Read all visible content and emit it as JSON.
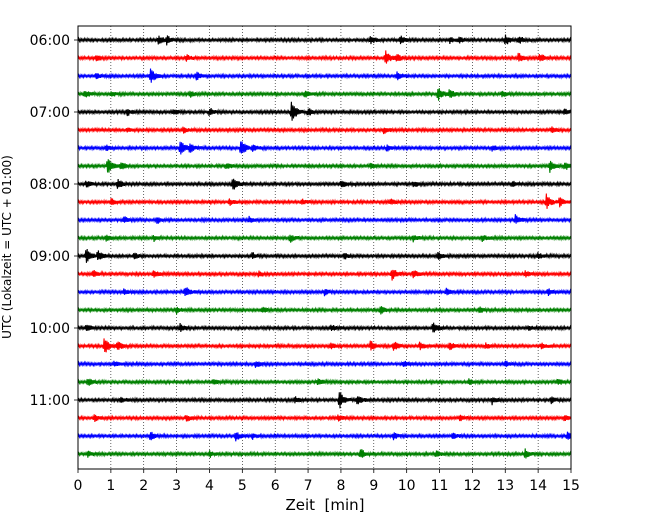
{
  "chart_data": {
    "type": "line",
    "title": "",
    "xlabel": "Zeit  [min]",
    "ylabel": "UTC (Lokalzeit = UTC + 01:00)",
    "xlim": [
      0,
      15
    ],
    "xticks": [
      0,
      1,
      2,
      3,
      4,
      5,
      6,
      7,
      8,
      9,
      10,
      11,
      12,
      13,
      14,
      15
    ],
    "xtick_labels": [
      "0",
      "1",
      "2",
      "3",
      "4",
      "5",
      "6",
      "7",
      "8",
      "9",
      "10",
      "11",
      "12",
      "13",
      "14",
      "15"
    ],
    "ytick_labels": [
      "06:00",
      "07:00",
      "08:00",
      "09:00",
      "10:00",
      "11:00"
    ],
    "ytick_trace_index": [
      0,
      4,
      8,
      12,
      16,
      20
    ],
    "grid": "vertical dotted at each minute",
    "row_interval_minutes": 15,
    "color_cycle": [
      "#000000",
      "#ff0000",
      "#0000ff",
      "#008000"
    ],
    "traces": [
      {
        "start": "06:00",
        "events": [
          {
            "x": 2.45,
            "amp": 4
          },
          {
            "x": 2.7,
            "amp": 4
          },
          {
            "x": 8.9,
            "amp": 4
          },
          {
            "x": 9.8,
            "amp": 4
          },
          {
            "x": 11.3,
            "amp": 3
          },
          {
            "x": 11.6,
            "amp": 3
          },
          {
            "x": 13.0,
            "amp": 5
          },
          {
            "x": 13.4,
            "amp": 4
          }
        ]
      },
      {
        "start": "06:15",
        "events": [
          {
            "x": 0.55,
            "amp": 3
          },
          {
            "x": 3.3,
            "amp": 3
          },
          {
            "x": 9.35,
            "amp": 7
          },
          {
            "x": 9.7,
            "amp": 4
          },
          {
            "x": 13.4,
            "amp": 5
          },
          {
            "x": 14.05,
            "amp": 4
          }
        ]
      },
      {
        "start": "06:30",
        "events": [
          {
            "x": 0.55,
            "amp": 3
          },
          {
            "x": 2.2,
            "amp": 8
          },
          {
            "x": 3.6,
            "amp": 4
          },
          {
            "x": 9.7,
            "amp": 4
          }
        ]
      },
      {
        "start": "06:45",
        "events": [
          {
            "x": 0.2,
            "amp": 4
          },
          {
            "x": 1.0,
            "amp": 3
          },
          {
            "x": 3.4,
            "amp": 3
          },
          {
            "x": 6.9,
            "amp": 3
          },
          {
            "x": 10.95,
            "amp": 7
          },
          {
            "x": 11.3,
            "amp": 4
          },
          {
            "x": 12.9,
            "amp": 3
          }
        ]
      },
      {
        "start": "07:00",
        "events": [
          {
            "x": 1.5,
            "amp": 3
          },
          {
            "x": 2.9,
            "amp": 3
          },
          {
            "x": 4.0,
            "amp": 4
          },
          {
            "x": 6.5,
            "amp": 11
          },
          {
            "x": 7.0,
            "amp": 4
          },
          {
            "x": 14.8,
            "amp": 3
          }
        ]
      },
      {
        "start": "07:15",
        "events": [
          {
            "x": 1.5,
            "amp": 2
          },
          {
            "x": 3.2,
            "amp": 3
          },
          {
            "x": 9.3,
            "amp": 3
          },
          {
            "x": 14.4,
            "amp": 3
          }
        ]
      },
      {
        "start": "07:30",
        "events": [
          {
            "x": 0.85,
            "amp": 3
          },
          {
            "x": 3.1,
            "amp": 9
          },
          {
            "x": 3.4,
            "amp": 4
          },
          {
            "x": 4.95,
            "amp": 9
          },
          {
            "x": 5.3,
            "amp": 3
          },
          {
            "x": 9.4,
            "amp": 3
          },
          {
            "x": 12.6,
            "amp": 3
          }
        ]
      },
      {
        "start": "07:45",
        "events": [
          {
            "x": 0.9,
            "amp": 9
          },
          {
            "x": 1.3,
            "amp": 4
          },
          {
            "x": 4.5,
            "amp": 3
          },
          {
            "x": 8.9,
            "amp": 3
          },
          {
            "x": 14.35,
            "amp": 6
          },
          {
            "x": 14.8,
            "amp": 4
          }
        ]
      },
      {
        "start": "08:00",
        "events": [
          {
            "x": 0.25,
            "amp": 3
          },
          {
            "x": 1.2,
            "amp": 5
          },
          {
            "x": 4.7,
            "amp": 8
          },
          {
            "x": 8.0,
            "amp": 4
          },
          {
            "x": 10.2,
            "amp": 3
          },
          {
            "x": 13.2,
            "amp": 3
          }
        ]
      },
      {
        "start": "08:15",
        "events": [
          {
            "x": 1.0,
            "amp": 3
          },
          {
            "x": 4.6,
            "amp": 3
          },
          {
            "x": 6.8,
            "amp": 3
          },
          {
            "x": 9.5,
            "amp": 3
          },
          {
            "x": 14.25,
            "amp": 7
          },
          {
            "x": 14.65,
            "amp": 4
          }
        ]
      },
      {
        "start": "08:30",
        "events": [
          {
            "x": 1.4,
            "amp": 3
          },
          {
            "x": 2.4,
            "amp": 3
          },
          {
            "x": 5.2,
            "amp": 3
          },
          {
            "x": 13.3,
            "amp": 5
          }
        ]
      },
      {
        "start": "08:45",
        "events": [
          {
            "x": 0.85,
            "amp": 3
          },
          {
            "x": 2.3,
            "amp": 3
          },
          {
            "x": 6.45,
            "amp": 4
          },
          {
            "x": 10.2,
            "amp": 3
          },
          {
            "x": 12.3,
            "amp": 3
          }
        ]
      },
      {
        "start": "09:00",
        "events": [
          {
            "x": 0.25,
            "amp": 7
          },
          {
            "x": 0.6,
            "amp": 5
          },
          {
            "x": 1.7,
            "amp": 3
          },
          {
            "x": 5.3,
            "amp": 3
          },
          {
            "x": 8.1,
            "amp": 3
          },
          {
            "x": 10.95,
            "amp": 4
          },
          {
            "x": 14.0,
            "amp": 3
          }
        ]
      },
      {
        "start": "09:15",
        "events": [
          {
            "x": 0.45,
            "amp": 4
          },
          {
            "x": 2.3,
            "amp": 3
          },
          {
            "x": 5.5,
            "amp": 3
          },
          {
            "x": 9.55,
            "amp": 6
          },
          {
            "x": 10.2,
            "amp": 4
          },
          {
            "x": 13.6,
            "amp": 3
          }
        ]
      },
      {
        "start": "09:30",
        "events": [
          {
            "x": 1.4,
            "amp": 3
          },
          {
            "x": 3.25,
            "amp": 6
          },
          {
            "x": 7.5,
            "amp": 3
          },
          {
            "x": 11.2,
            "amp": 3
          },
          {
            "x": 14.3,
            "amp": 3
          }
        ]
      },
      {
        "start": "09:45",
        "events": [
          {
            "x": 3.0,
            "amp": 3
          },
          {
            "x": 5.6,
            "amp": 3
          },
          {
            "x": 9.2,
            "amp": 4
          },
          {
            "x": 12.2,
            "amp": 3
          }
        ]
      },
      {
        "start": "10:00",
        "events": [
          {
            "x": 0.25,
            "amp": 3
          },
          {
            "x": 3.1,
            "amp": 4
          },
          {
            "x": 7.7,
            "amp": 3
          },
          {
            "x": 10.8,
            "amp": 6
          },
          {
            "x": 13.7,
            "amp": 3
          }
        ]
      },
      {
        "start": "10:15",
        "events": [
          {
            "x": 0.8,
            "amp": 9
          },
          {
            "x": 1.2,
            "amp": 4
          },
          {
            "x": 7.7,
            "amp": 3
          },
          {
            "x": 8.9,
            "amp": 5
          },
          {
            "x": 9.6,
            "amp": 5
          },
          {
            "x": 10.4,
            "amp": 4
          },
          {
            "x": 11.3,
            "amp": 4
          },
          {
            "x": 12.4,
            "amp": 3
          },
          {
            "x": 14.1,
            "amp": 3
          }
        ]
      },
      {
        "start": "10:30",
        "events": [
          {
            "x": 1.1,
            "amp": 3
          },
          {
            "x": 5.4,
            "amp": 3
          },
          {
            "x": 9.9,
            "amp": 3
          },
          {
            "x": 13.0,
            "amp": 3
          }
        ]
      },
      {
        "start": "10:45",
        "events": [
          {
            "x": 0.3,
            "amp": 4
          },
          {
            "x": 4.1,
            "amp": 3
          },
          {
            "x": 7.3,
            "amp": 3
          },
          {
            "x": 11.9,
            "amp": 3
          },
          {
            "x": 14.6,
            "amp": 3
          }
        ]
      },
      {
        "start": "11:00",
        "events": [
          {
            "x": 1.3,
            "amp": 3
          },
          {
            "x": 6.6,
            "amp": 3
          },
          {
            "x": 7.95,
            "amp": 9
          },
          {
            "x": 8.5,
            "amp": 5
          },
          {
            "x": 12.6,
            "amp": 4
          },
          {
            "x": 14.4,
            "amp": 3
          }
        ]
      },
      {
        "start": "11:15",
        "events": [
          {
            "x": 0.5,
            "amp": 3
          },
          {
            "x": 3.3,
            "amp": 3
          },
          {
            "x": 7.9,
            "amp": 3
          },
          {
            "x": 11.6,
            "amp": 3
          },
          {
            "x": 14.8,
            "amp": 3
          }
        ]
      },
      {
        "start": "11:30",
        "events": [
          {
            "x": 2.2,
            "amp": 4
          },
          {
            "x": 4.8,
            "amp": 4
          },
          {
            "x": 5.3,
            "amp": 3
          },
          {
            "x": 9.6,
            "amp": 3
          },
          {
            "x": 11.4,
            "amp": 3
          },
          {
            "x": 14.9,
            "amp": 5
          }
        ]
      },
      {
        "start": "11:45",
        "events": [
          {
            "x": 0.3,
            "amp": 3
          },
          {
            "x": 4.0,
            "amp": 3
          },
          {
            "x": 8.6,
            "amp": 5
          },
          {
            "x": 10.9,
            "amp": 3
          },
          {
            "x": 13.6,
            "amp": 5
          }
        ]
      }
    ]
  }
}
